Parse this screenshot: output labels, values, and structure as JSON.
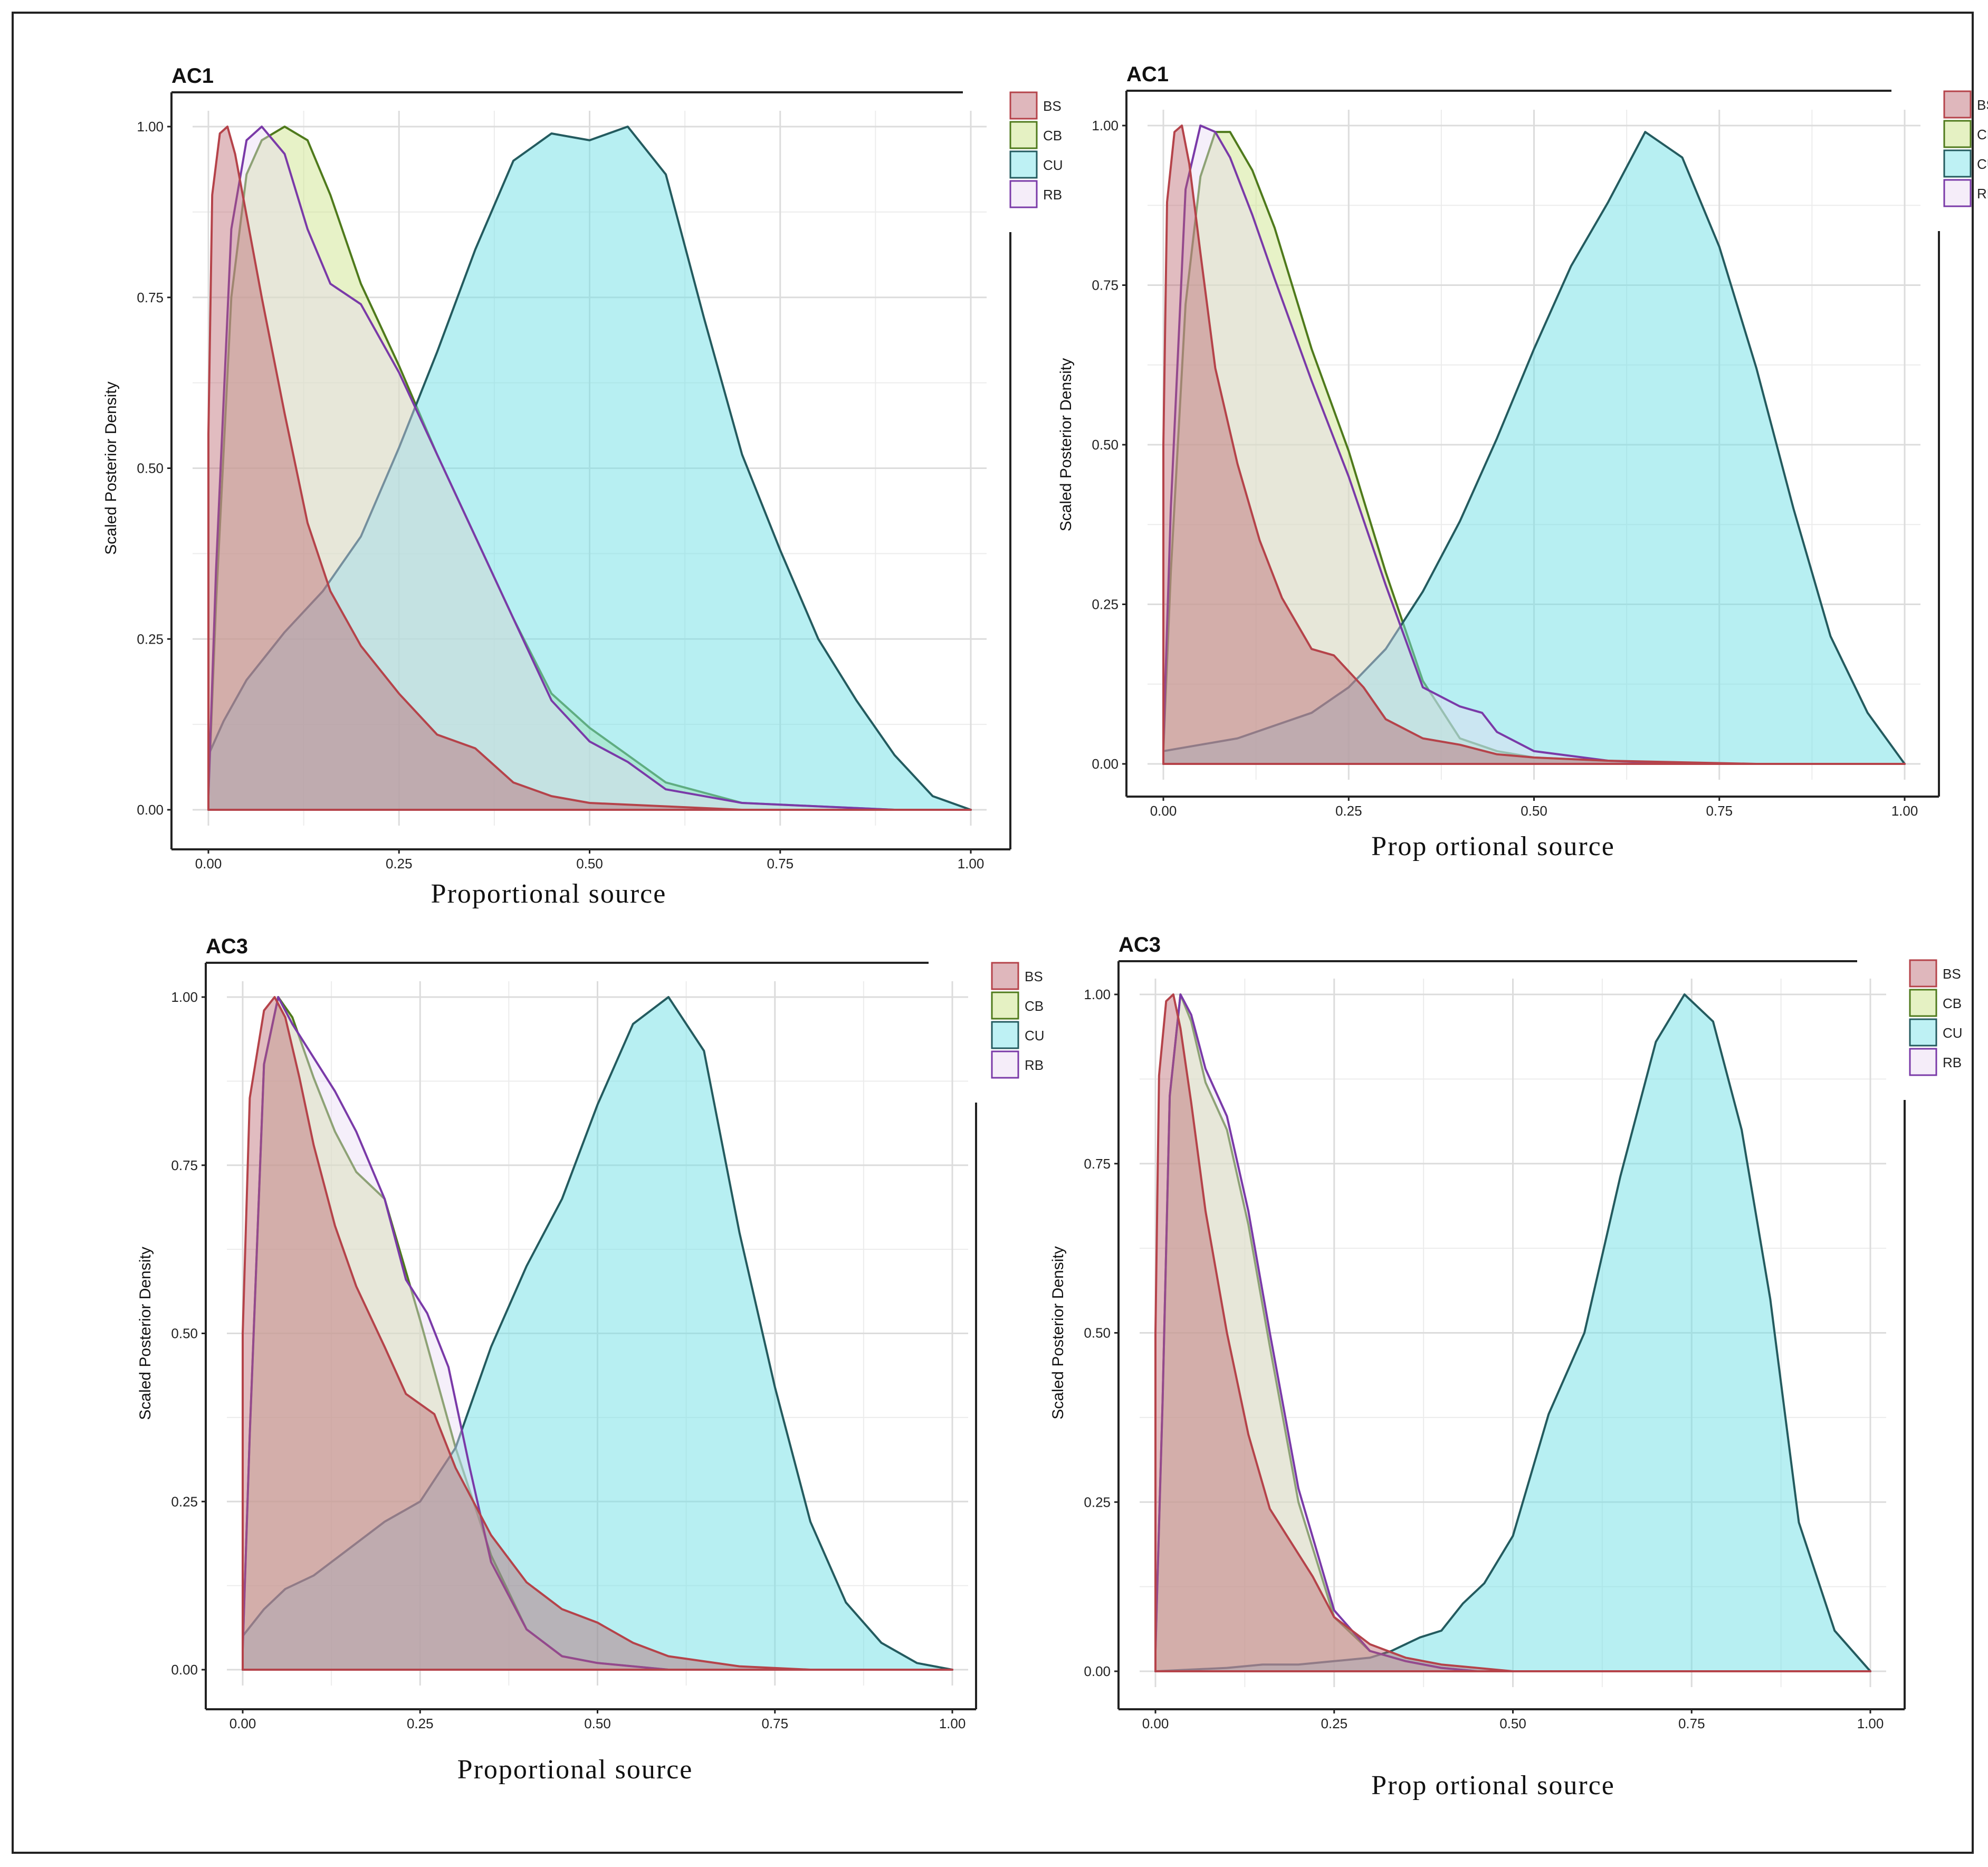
{
  "figure": {
    "border_color": "#222222"
  },
  "chart_data": [
    {
      "type": "area",
      "panel": "top-left",
      "title": "AC1",
      "xlabel": "Proportional source",
      "ylabel": "Scaled Posterior Density",
      "xlim": [
        0,
        1
      ],
      "ylim": [
        0,
        1
      ],
      "xticks": [
        "0.00",
        "0.25",
        "0.50",
        "0.75",
        "1.00"
      ],
      "yticks": [
        "0.00",
        "0.25",
        "0.50",
        "0.75",
        "1.00"
      ],
      "legend": {
        "position": "top-right",
        "entries": [
          "BS",
          "CB",
          "CU",
          "RB"
        ]
      },
      "series": [
        {
          "name": "BS",
          "stroke": "#b5434a",
          "fill": "#b7606a",
          "x": [
            0,
            0.005,
            0.015,
            0.025,
            0.035,
            0.05,
            0.07,
            0.1,
            0.13,
            0.16,
            0.2,
            0.25,
            0.3,
            0.35,
            0.4,
            0.45,
            0.5,
            0.6,
            0.7,
            0.85,
            1.0
          ],
          "y": [
            0.55,
            0.9,
            0.99,
            1.0,
            0.96,
            0.87,
            0.75,
            0.58,
            0.42,
            0.32,
            0.24,
            0.17,
            0.11,
            0.09,
            0.04,
            0.02,
            0.01,
            0.005,
            0.0,
            0.0,
            0.0
          ]
        },
        {
          "name": "CB",
          "stroke": "#4f7a1c",
          "fill": "#c6e07a",
          "x": [
            0,
            0.01,
            0.03,
            0.05,
            0.07,
            0.1,
            0.13,
            0.16,
            0.2,
            0.25,
            0.3,
            0.35,
            0.4,
            0.45,
            0.5,
            0.55,
            0.6,
            0.7,
            0.8,
            0.9,
            1.0
          ],
          "y": [
            0.02,
            0.3,
            0.75,
            0.93,
            0.98,
            1.0,
            0.98,
            0.9,
            0.77,
            0.65,
            0.52,
            0.4,
            0.28,
            0.17,
            0.12,
            0.08,
            0.04,
            0.01,
            0.005,
            0.0,
            0.0
          ]
        },
        {
          "name": "CU",
          "stroke": "#245b5f",
          "fill": "#6fe0e6",
          "x": [
            0,
            0.02,
            0.05,
            0.1,
            0.15,
            0.2,
            0.25,
            0.3,
            0.35,
            0.4,
            0.45,
            0.5,
            0.55,
            0.6,
            0.65,
            0.7,
            0.75,
            0.8,
            0.85,
            0.9,
            0.95,
            1.0
          ],
          "y": [
            0.08,
            0.13,
            0.19,
            0.26,
            0.32,
            0.4,
            0.53,
            0.67,
            0.82,
            0.95,
            0.99,
            0.98,
            1.0,
            0.93,
            0.72,
            0.52,
            0.38,
            0.25,
            0.16,
            0.08,
            0.02,
            0.0
          ]
        },
        {
          "name": "RB",
          "stroke": "#7a3aa8",
          "fill": "#e8d8f2",
          "x": [
            0,
            0.01,
            0.03,
            0.05,
            0.07,
            0.1,
            0.13,
            0.16,
            0.2,
            0.25,
            0.3,
            0.35,
            0.4,
            0.45,
            0.5,
            0.55,
            0.6,
            0.7,
            0.8,
            0.9,
            1.0
          ],
          "y": [
            0.02,
            0.35,
            0.85,
            0.98,
            1.0,
            0.96,
            0.85,
            0.77,
            0.74,
            0.64,
            0.52,
            0.4,
            0.28,
            0.16,
            0.1,
            0.07,
            0.03,
            0.01,
            0.005,
            0.0,
            0.0
          ]
        }
      ]
    },
    {
      "type": "area",
      "panel": "top-right",
      "title": "AC1",
      "xlabel": "Prop ortional source",
      "ylabel": "Scaled Posterior Density",
      "xlim": [
        0,
        1
      ],
      "ylim": [
        0,
        1
      ],
      "xticks": [
        "0.00",
        "0.25",
        "0.50",
        "0.75",
        "1.00"
      ],
      "yticks": [
        "0.00",
        "0.25",
        "0.50",
        "0.75",
        "1.00"
      ],
      "legend": {
        "position": "top-right",
        "entries": [
          "BS",
          "CB",
          "CU",
          "RB"
        ]
      },
      "series": [
        {
          "name": "BS",
          "stroke": "#b5434a",
          "fill": "#b7606a",
          "x": [
            0,
            0.005,
            0.015,
            0.025,
            0.035,
            0.05,
            0.07,
            0.1,
            0.13,
            0.16,
            0.2,
            0.23,
            0.27,
            0.3,
            0.35,
            0.4,
            0.45,
            0.5,
            0.6,
            0.8,
            1.0
          ],
          "y": [
            0.5,
            0.88,
            0.99,
            1.0,
            0.94,
            0.8,
            0.62,
            0.47,
            0.35,
            0.26,
            0.18,
            0.17,
            0.12,
            0.07,
            0.04,
            0.03,
            0.015,
            0.01,
            0.005,
            0.0,
            0.0
          ]
        },
        {
          "name": "CB",
          "stroke": "#4f7a1c",
          "fill": "#c6e07a",
          "x": [
            0,
            0.01,
            0.03,
            0.05,
            0.07,
            0.09,
            0.12,
            0.15,
            0.2,
            0.25,
            0.3,
            0.35,
            0.4,
            0.45,
            0.5,
            0.6,
            0.7,
            0.8,
            1.0
          ],
          "y": [
            0.02,
            0.3,
            0.72,
            0.92,
            0.99,
            0.99,
            0.93,
            0.84,
            0.65,
            0.49,
            0.3,
            0.13,
            0.04,
            0.02,
            0.01,
            0.005,
            0.0,
            0.0,
            0.0
          ]
        },
        {
          "name": "CU",
          "stroke": "#245b5f",
          "fill": "#6fe0e6",
          "x": [
            0,
            0.05,
            0.1,
            0.15,
            0.2,
            0.25,
            0.3,
            0.35,
            0.4,
            0.45,
            0.5,
            0.55,
            0.6,
            0.65,
            0.7,
            0.75,
            0.8,
            0.85,
            0.9,
            0.95,
            1.0
          ],
          "y": [
            0.02,
            0.03,
            0.04,
            0.06,
            0.08,
            0.12,
            0.18,
            0.27,
            0.38,
            0.51,
            0.65,
            0.78,
            0.88,
            0.99,
            0.95,
            0.81,
            0.62,
            0.4,
            0.2,
            0.08,
            0.0
          ]
        },
        {
          "name": "RB",
          "stroke": "#7a3aa8",
          "fill": "#e8d8f2",
          "x": [
            0,
            0.01,
            0.03,
            0.05,
            0.07,
            0.09,
            0.12,
            0.15,
            0.2,
            0.25,
            0.3,
            0.35,
            0.4,
            0.43,
            0.45,
            0.5,
            0.6,
            0.7,
            0.8,
            1.0
          ],
          "y": [
            0.03,
            0.4,
            0.9,
            1.0,
            0.99,
            0.95,
            0.86,
            0.76,
            0.6,
            0.45,
            0.28,
            0.12,
            0.09,
            0.08,
            0.05,
            0.02,
            0.005,
            0.0,
            0.0,
            0.0
          ]
        }
      ]
    },
    {
      "type": "area",
      "panel": "bottom-left",
      "title": "AC3",
      "xlabel": "Proportional source",
      "ylabel": "Scaled Posterior Density",
      "xlim": [
        0,
        1
      ],
      "ylim": [
        0,
        1
      ],
      "xticks": [
        "0.00",
        "0.25",
        "0.50",
        "0.75",
        "1.00"
      ],
      "yticks": [
        "0.00",
        "0.25",
        "0.50",
        "0.75",
        "1.00"
      ],
      "legend": {
        "position": "top-right",
        "entries": [
          "BS",
          "CB",
          "CU",
          "RB"
        ]
      },
      "series": [
        {
          "name": "BS",
          "stroke": "#b5434a",
          "fill": "#b7606a",
          "x": [
            0,
            0.01,
            0.03,
            0.045,
            0.06,
            0.08,
            0.1,
            0.13,
            0.16,
            0.2,
            0.23,
            0.27,
            0.3,
            0.35,
            0.4,
            0.45,
            0.5,
            0.55,
            0.6,
            0.7,
            0.8,
            1.0
          ],
          "y": [
            0.5,
            0.85,
            0.98,
            1.0,
            0.97,
            0.88,
            0.78,
            0.66,
            0.57,
            0.48,
            0.41,
            0.38,
            0.3,
            0.2,
            0.13,
            0.09,
            0.07,
            0.04,
            0.02,
            0.005,
            0.0,
            0.0
          ]
        },
        {
          "name": "CB",
          "stroke": "#4f7a1c",
          "fill": "#c6e07a",
          "x": [
            0,
            0.01,
            0.03,
            0.05,
            0.07,
            0.1,
            0.13,
            0.16,
            0.2,
            0.25,
            0.3,
            0.35,
            0.4,
            0.45,
            0.5,
            0.55,
            0.6,
            0.7,
            0.8,
            1.0
          ],
          "y": [
            0.03,
            0.35,
            0.9,
            1.0,
            0.97,
            0.88,
            0.8,
            0.74,
            0.7,
            0.52,
            0.33,
            0.17,
            0.06,
            0.02,
            0.01,
            0.005,
            0.0,
            0.0,
            0.0,
            0.0
          ]
        },
        {
          "name": "CU",
          "stroke": "#245b5f",
          "fill": "#6fe0e6",
          "x": [
            0,
            0.03,
            0.06,
            0.1,
            0.15,
            0.2,
            0.25,
            0.3,
            0.35,
            0.4,
            0.45,
            0.5,
            0.55,
            0.6,
            0.65,
            0.7,
            0.75,
            0.8,
            0.85,
            0.9,
            0.95,
            1.0
          ],
          "y": [
            0.05,
            0.09,
            0.12,
            0.14,
            0.18,
            0.22,
            0.25,
            0.33,
            0.48,
            0.6,
            0.7,
            0.84,
            0.96,
            1.0,
            0.92,
            0.65,
            0.42,
            0.22,
            0.1,
            0.04,
            0.01,
            0.0
          ]
        },
        {
          "name": "RB",
          "stroke": "#7a3aa8",
          "fill": "#e8d8f2",
          "x": [
            0,
            0.01,
            0.03,
            0.05,
            0.07,
            0.1,
            0.13,
            0.16,
            0.2,
            0.23,
            0.26,
            0.29,
            0.32,
            0.35,
            0.4,
            0.45,
            0.5,
            0.6,
            0.7,
            1.0
          ],
          "y": [
            0.03,
            0.35,
            0.9,
            1.0,
            0.96,
            0.91,
            0.86,
            0.8,
            0.7,
            0.58,
            0.53,
            0.45,
            0.3,
            0.16,
            0.06,
            0.02,
            0.01,
            0.0,
            0.0,
            0.0
          ]
        }
      ]
    },
    {
      "type": "area",
      "panel": "bottom-right",
      "title": "AC3",
      "xlabel": "Prop ortional source",
      "ylabel": "Scaled Posterior Density",
      "xlim": [
        0,
        1
      ],
      "ylim": [
        0,
        1
      ],
      "xticks": [
        "0.00",
        "0.25",
        "0.50",
        "0.75",
        "1.00"
      ],
      "yticks": [
        "0.00",
        "0.25",
        "0.50",
        "0.75",
        "1.00"
      ],
      "legend": {
        "position": "top-right",
        "entries": [
          "BS",
          "CB",
          "CU",
          "RB"
        ]
      },
      "series": [
        {
          "name": "BS",
          "stroke": "#b5434a",
          "fill": "#b7606a",
          "x": [
            0,
            0.005,
            0.015,
            0.025,
            0.035,
            0.05,
            0.07,
            0.1,
            0.13,
            0.16,
            0.19,
            0.22,
            0.25,
            0.3,
            0.35,
            0.4,
            0.45,
            0.5,
            0.6,
            1.0
          ],
          "y": [
            0.5,
            0.88,
            0.99,
            1.0,
            0.95,
            0.84,
            0.68,
            0.5,
            0.35,
            0.24,
            0.19,
            0.14,
            0.08,
            0.04,
            0.02,
            0.01,
            0.005,
            0.0,
            0.0,
            0.0
          ]
        },
        {
          "name": "CB",
          "stroke": "#4f7a1c",
          "fill": "#c6e07a",
          "x": [
            0,
            0.01,
            0.02,
            0.035,
            0.05,
            0.07,
            0.1,
            0.13,
            0.16,
            0.2,
            0.25,
            0.3,
            0.35,
            0.4,
            0.45,
            0.5,
            0.6,
            1.0
          ],
          "y": [
            0.03,
            0.4,
            0.85,
            1.0,
            0.96,
            0.87,
            0.8,
            0.66,
            0.48,
            0.25,
            0.08,
            0.03,
            0.015,
            0.005,
            0.0,
            0.0,
            0.0,
            0.0
          ]
        },
        {
          "name": "CU",
          "stroke": "#245b5f",
          "fill": "#6fe0e6",
          "x": [
            0,
            0.1,
            0.15,
            0.2,
            0.25,
            0.3,
            0.33,
            0.37,
            0.4,
            0.43,
            0.46,
            0.5,
            0.55,
            0.6,
            0.65,
            0.7,
            0.74,
            0.78,
            0.82,
            0.86,
            0.9,
            0.95,
            1.0
          ],
          "y": [
            0.0,
            0.005,
            0.01,
            0.01,
            0.015,
            0.02,
            0.03,
            0.05,
            0.06,
            0.1,
            0.13,
            0.2,
            0.38,
            0.5,
            0.73,
            0.93,
            1.0,
            0.96,
            0.8,
            0.55,
            0.22,
            0.06,
            0.0
          ]
        },
        {
          "name": "RB",
          "stroke": "#7a3aa8",
          "fill": "#e8d8f2",
          "x": [
            0,
            0.01,
            0.02,
            0.035,
            0.05,
            0.07,
            0.1,
            0.13,
            0.16,
            0.2,
            0.25,
            0.3,
            0.35,
            0.4,
            0.45,
            0.5,
            0.6,
            1.0
          ],
          "y": [
            0.03,
            0.4,
            0.85,
            1.0,
            0.97,
            0.89,
            0.82,
            0.68,
            0.5,
            0.27,
            0.09,
            0.03,
            0.015,
            0.005,
            0.0,
            0.0,
            0.0,
            0.0
          ]
        }
      ]
    }
  ]
}
